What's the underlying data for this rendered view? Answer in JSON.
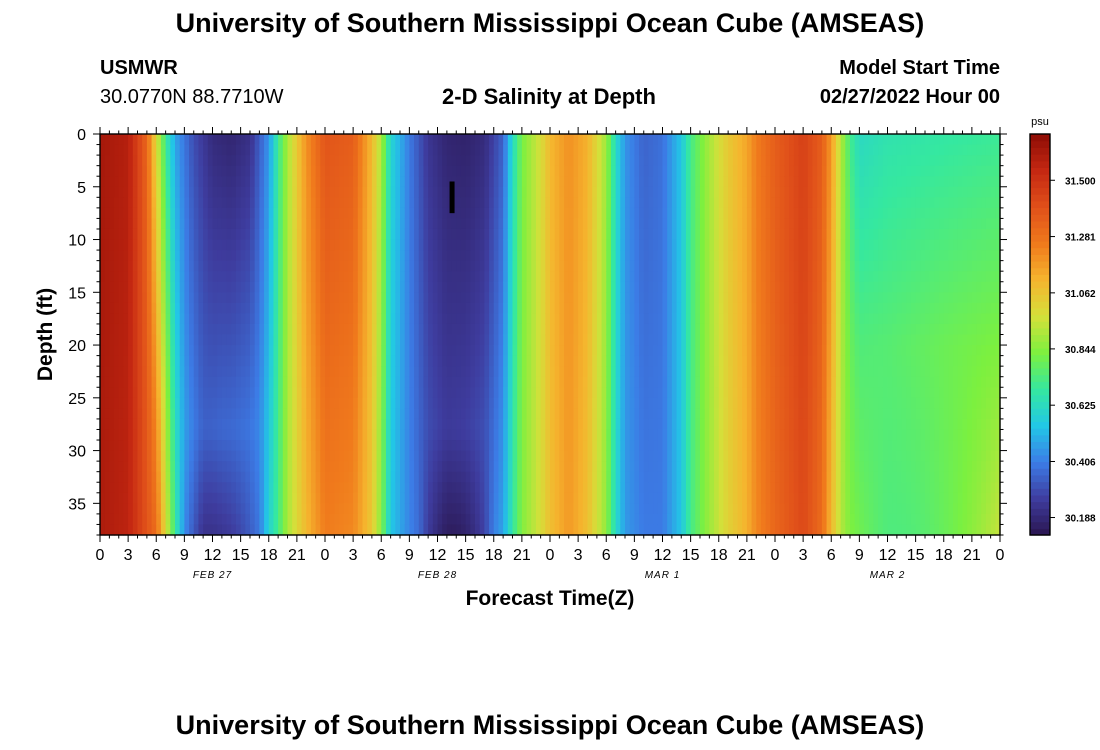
{
  "header": {
    "title": "University of Southern Mississippi Ocean Cube (AMSEAS)",
    "station": "USMWR",
    "coords": "30.0770N  88.7710W",
    "subtitle": "2-D Salinity at Depth",
    "model_start_label": "Model Start Time",
    "model_start_value": "02/27/2022 Hour 00"
  },
  "footer": {
    "title": "University of Southern Mississippi Ocean Cube (AMSEAS)"
  },
  "chart_data": {
    "type": "heatmap",
    "title": "2-D Salinity at Depth",
    "xlabel": "Forecast Time(Z)",
    "ylabel": "Depth (ft)",
    "x_range_hours": [
      0,
      96
    ],
    "x_tick_step_hours": 3,
    "x_tick_labels": [
      "0",
      "3",
      "6",
      "9",
      "12",
      "15",
      "18",
      "21",
      "0",
      "3",
      "6",
      "9",
      "12",
      "15",
      "18",
      "21",
      "0",
      "3",
      "6",
      "9",
      "12",
      "15",
      "18",
      "21",
      "0",
      "3",
      "6",
      "9",
      "12",
      "15",
      "18",
      "21",
      "0"
    ],
    "day_labels": [
      "FEB 27",
      "FEB 28",
      "MAR 1",
      "MAR 2"
    ],
    "y_ticks": [
      0,
      5,
      10,
      15,
      20,
      25,
      30,
      35
    ],
    "y_range_ft": [
      0,
      38
    ],
    "y_inverted": true,
    "colorbar": {
      "unit": "psu",
      "tick_labels": [
        "31.500",
        "31.281",
        "31.062",
        "30.844",
        "30.625",
        "30.406",
        "30.188"
      ],
      "ticks": [
        31.5,
        31.281,
        31.062,
        30.844,
        30.625,
        30.406,
        30.188
      ],
      "range": [
        30.12,
        31.68
      ],
      "colors": [
        "#2a1650",
        "#3e3c9e",
        "#3c7ce6",
        "#22c7e6",
        "#35e8a0",
        "#7cf03f",
        "#d4e03a",
        "#f5b52e",
        "#f07a1c",
        "#e0501a",
        "#c52812",
        "#8e0d05"
      ]
    },
    "surface_salinity_by_hour": [
      [
        0,
        31.62
      ],
      [
        3,
        31.58
      ],
      [
        5,
        31.32
      ],
      [
        6,
        31.0
      ],
      [
        7,
        30.7
      ],
      [
        8,
        30.48
      ],
      [
        10,
        30.3
      ],
      [
        12,
        30.2
      ],
      [
        14,
        30.18
      ],
      [
        16,
        30.22
      ],
      [
        18,
        30.45
      ],
      [
        19,
        30.7
      ],
      [
        20,
        30.9
      ],
      [
        22,
        31.2
      ],
      [
        24,
        31.38
      ],
      [
        27,
        31.35
      ],
      [
        29,
        31.1
      ],
      [
        30,
        30.9
      ],
      [
        31,
        30.6
      ],
      [
        33,
        30.4
      ],
      [
        35,
        30.24
      ],
      [
        37,
        30.18
      ],
      [
        39,
        30.17
      ],
      [
        41,
        30.2
      ],
      [
        43,
        30.35
      ],
      [
        44,
        30.62
      ],
      [
        45,
        30.82
      ],
      [
        47,
        30.98
      ],
      [
        48,
        31.1
      ],
      [
        50,
        31.2
      ],
      [
        52,
        31.12
      ],
      [
        54,
        30.88
      ],
      [
        55,
        30.62
      ],
      [
        56,
        30.45
      ],
      [
        58,
        30.35
      ],
      [
        60,
        30.38
      ],
      [
        62,
        30.55
      ],
      [
        63,
        30.72
      ],
      [
        65,
        30.9
      ],
      [
        67,
        31.05
      ],
      [
        69,
        31.15
      ],
      [
        70,
        31.25
      ],
      [
        72,
        31.35
      ],
      [
        75,
        31.45
      ],
      [
        77,
        31.35
      ],
      [
        78,
        31.18
      ],
      [
        79,
        30.92
      ],
      [
        80,
        30.72
      ],
      [
        81,
        30.62
      ],
      [
        84,
        30.66
      ],
      [
        90,
        30.68
      ],
      [
        96,
        30.7
      ]
    ],
    "bottom_salinity_by_hour": [
      [
        0,
        31.6
      ],
      [
        3,
        31.56
      ],
      [
        6,
        31.3
      ],
      [
        7,
        31.0
      ],
      [
        8,
        30.7
      ],
      [
        9,
        30.5
      ],
      [
        11,
        30.38
      ],
      [
        13,
        30.42
      ],
      [
        15,
        30.44
      ],
      [
        17,
        30.46
      ],
      [
        19,
        30.72
      ],
      [
        20,
        30.9
      ],
      [
        22,
        31.1
      ],
      [
        24,
        31.25
      ],
      [
        27,
        31.22
      ],
      [
        29,
        31.05
      ],
      [
        30,
        30.84
      ],
      [
        31,
        30.55
      ],
      [
        33,
        30.42
      ],
      [
        35,
        30.32
      ],
      [
        37,
        30.28
      ],
      [
        39,
        30.3
      ],
      [
        41,
        30.34
      ],
      [
        43,
        30.48
      ],
      [
        44,
        30.68
      ],
      [
        45,
        30.84
      ],
      [
        47,
        30.98
      ],
      [
        48,
        31.08
      ],
      [
        50,
        31.18
      ],
      [
        52,
        31.08
      ],
      [
        54,
        30.86
      ],
      [
        55,
        30.62
      ],
      [
        56,
        30.46
      ],
      [
        58,
        30.4
      ],
      [
        60,
        30.4
      ],
      [
        62,
        30.55
      ],
      [
        63,
        30.72
      ],
      [
        65,
        30.88
      ],
      [
        67,
        31.02
      ],
      [
        69,
        31.12
      ],
      [
        70,
        31.22
      ],
      [
        72,
        31.32
      ],
      [
        75,
        31.42
      ],
      [
        77,
        31.3
      ],
      [
        78,
        31.1
      ],
      [
        79,
        30.92
      ],
      [
        80,
        30.86
      ],
      [
        84,
        30.84
      ],
      [
        90,
        30.9
      ],
      [
        96,
        30.95
      ]
    ],
    "deep_anomalies": [
      {
        "hour_start": 8,
        "hour_end": 18,
        "depth_start_ft": 28,
        "delta": 0.18
      },
      {
        "hour_start": 34,
        "hour_end": 42,
        "depth_start_ft": 28,
        "delta": 0.14
      },
      {
        "hour_start": 79,
        "hour_end": 96,
        "depth_start_ft": 20,
        "delta": 0.12
      }
    ],
    "marker": {
      "hour": 37.5,
      "depth_from_ft": 4.5,
      "depth_to_ft": 7.5
    }
  }
}
